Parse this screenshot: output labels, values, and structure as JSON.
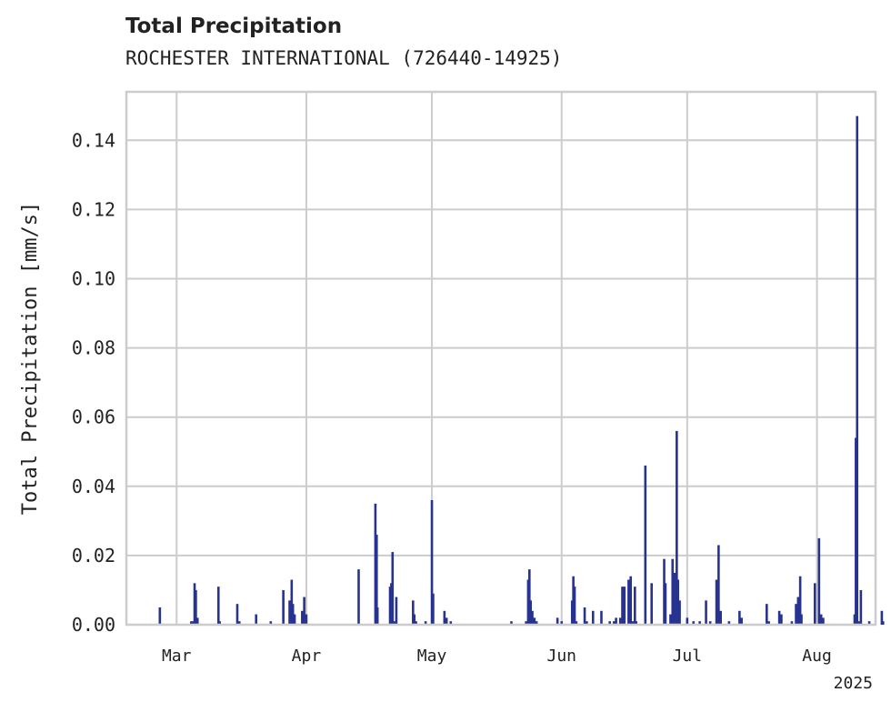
{
  "chart_data": {
    "type": "bar",
    "title": "Total Precipitation",
    "subtitle": "ROCHESTER INTERNATIONAL (726440-14925)",
    "ylabel": "Total Precipitation [mm/s]",
    "xlabel": "",
    "ylim": [
      0,
      0.154
    ],
    "yticks": [
      0.0,
      0.02,
      0.04,
      0.06,
      0.08,
      0.1,
      0.12,
      0.14
    ],
    "ytick_labels": [
      "0.00",
      "0.02",
      "0.04",
      "0.06",
      "0.08",
      "0.10",
      "0.12",
      "0.14"
    ],
    "x_range_days": [
      -4,
      175
    ],
    "xticks": [
      {
        "day": 8,
        "label": "Mar"
      },
      {
        "day": 39,
        "label": "Apr"
      },
      {
        "day": 69,
        "label": "May"
      },
      {
        "day": 100,
        "label": "Jun"
      },
      {
        "day": 130,
        "label": "Jul"
      },
      {
        "day": 161,
        "label": "Aug"
      }
    ],
    "year_label": "2025",
    "grid": true,
    "color": "#27338f",
    "x_unit": "days since Feb 1, 2025",
    "series": [
      {
        "name": "Total Precipitation",
        "points": [
          [
            4.0,
            0.005
          ],
          [
            11.5,
            0.001
          ],
          [
            12.0,
            0.001
          ],
          [
            12.3,
            0.012
          ],
          [
            12.6,
            0.01
          ],
          [
            13.0,
            0.002
          ],
          [
            18.0,
            0.011
          ],
          [
            18.3,
            0.001
          ],
          [
            22.5,
            0.006
          ],
          [
            23.0,
            0.001
          ],
          [
            27.0,
            0.003
          ],
          [
            30.5,
            0.001
          ],
          [
            33.5,
            0.01
          ],
          [
            35.0,
            0.007
          ],
          [
            35.5,
            0.013
          ],
          [
            35.8,
            0.006
          ],
          [
            36.2,
            0.003
          ],
          [
            38.0,
            0.004
          ],
          [
            38.5,
            0.008
          ],
          [
            39.0,
            0.003
          ],
          [
            51.5,
            0.016
          ],
          [
            55.5,
            0.035
          ],
          [
            55.8,
            0.026
          ],
          [
            56.0,
            0.005
          ],
          [
            59.0,
            0.011
          ],
          [
            59.3,
            0.012
          ],
          [
            59.6,
            0.021
          ],
          [
            60.0,
            0.001
          ],
          [
            60.5,
            0.008
          ],
          [
            64.5,
            0.007
          ],
          [
            64.8,
            0.003
          ],
          [
            65.2,
            0.001
          ],
          [
            67.5,
            0.001
          ],
          [
            69.0,
            0.036
          ],
          [
            69.3,
            0.009
          ],
          [
            72.0,
            0.004
          ],
          [
            72.5,
            0.002
          ],
          [
            73.5,
            0.001
          ],
          [
            88.0,
            0.001
          ],
          [
            91.5,
            0.001
          ],
          [
            92.0,
            0.013
          ],
          [
            92.3,
            0.016
          ],
          [
            92.6,
            0.007
          ],
          [
            93.0,
            0.004
          ],
          [
            93.5,
            0.002
          ],
          [
            94.0,
            0.001
          ],
          [
            99.0,
            0.002
          ],
          [
            100.0,
            0.001
          ],
          [
            102.5,
            0.007
          ],
          [
            102.8,
            0.014
          ],
          [
            103.1,
            0.011
          ],
          [
            103.5,
            0.001
          ],
          [
            105.5,
            0.005
          ],
          [
            106.0,
            0.001
          ],
          [
            107.5,
            0.004
          ],
          [
            109.5,
            0.004
          ],
          [
            111.5,
            0.001
          ],
          [
            112.5,
            0.001
          ],
          [
            113.0,
            0.002
          ],
          [
            114.0,
            0.002
          ],
          [
            114.5,
            0.011
          ],
          [
            115.0,
            0.011
          ],
          [
            116.0,
            0.013
          ],
          [
            116.5,
            0.014
          ],
          [
            117.0,
            0.001
          ],
          [
            117.5,
            0.011
          ],
          [
            117.8,
            0.001
          ],
          [
            120.0,
            0.046
          ],
          [
            121.5,
            0.012
          ],
          [
            124.5,
            0.019
          ],
          [
            124.8,
            0.012
          ],
          [
            126.0,
            0.003
          ],
          [
            126.5,
            0.019
          ],
          [
            127.0,
            0.015
          ],
          [
            127.5,
            0.056
          ],
          [
            127.8,
            0.013
          ],
          [
            128.2,
            0.007
          ],
          [
            130.0,
            0.002
          ],
          [
            131.5,
            0.001
          ],
          [
            133.0,
            0.001
          ],
          [
            134.5,
            0.007
          ],
          [
            135.5,
            0.001
          ],
          [
            137.0,
            0.013
          ],
          [
            137.5,
            0.023
          ],
          [
            138.0,
            0.004
          ],
          [
            140.0,
            0.001
          ],
          [
            142.5,
            0.004
          ],
          [
            143.0,
            0.002
          ],
          [
            149.0,
            0.006
          ],
          [
            149.5,
            0.001
          ],
          [
            152.0,
            0.004
          ],
          [
            152.5,
            0.003
          ],
          [
            155.0,
            0.001
          ],
          [
            156.0,
            0.006
          ],
          [
            156.5,
            0.008
          ],
          [
            157.0,
            0.014
          ],
          [
            157.3,
            0.003
          ],
          [
            160.5,
            0.012
          ],
          [
            161.5,
            0.025
          ],
          [
            162.0,
            0.003
          ],
          [
            162.5,
            0.002
          ],
          [
            170.0,
            0.003
          ],
          [
            170.3,
            0.054
          ],
          [
            170.6,
            0.147
          ],
          [
            171.0,
            0.001
          ],
          [
            171.5,
            0.01
          ],
          [
            173.5,
            0.001
          ],
          [
            176.5,
            0.004
          ],
          [
            176.8,
            0.001
          ]
        ]
      }
    ]
  }
}
